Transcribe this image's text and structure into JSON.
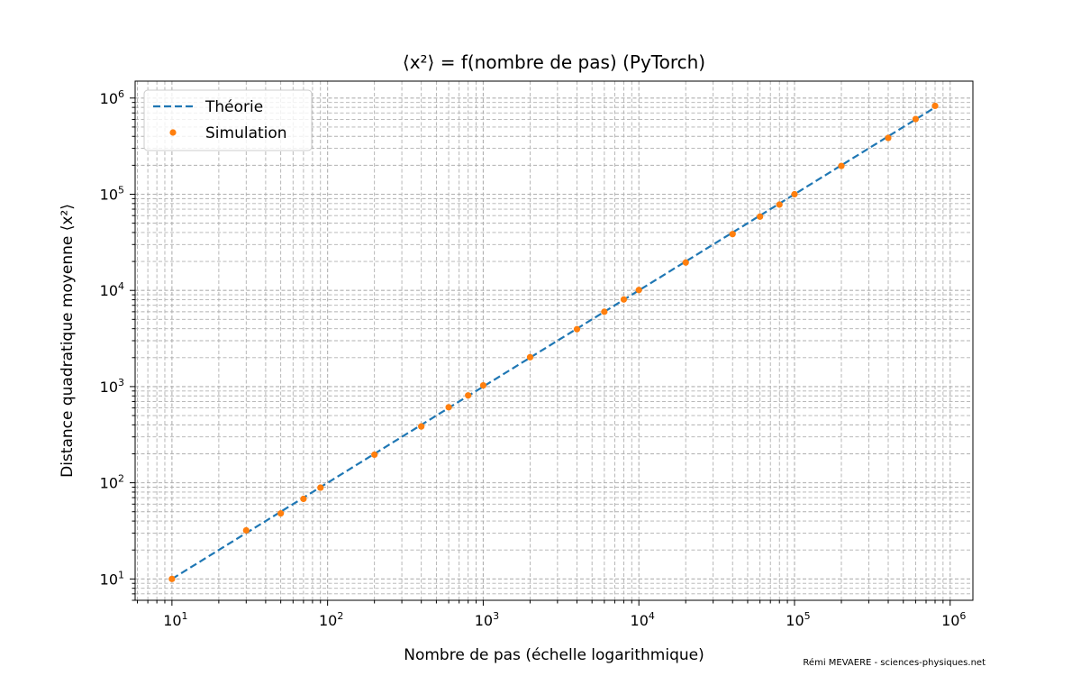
{
  "chart_data": {
    "type": "line",
    "title": "⟨x²⟩ = f(nombre de pas)    (PyTorch)",
    "xlabel": "Nombre de pas (échelle logarithmique)",
    "ylabel": "Distance quadratique moyenne ⟨x²⟩",
    "xscale": "log",
    "yscale": "log",
    "xlim": [
      5.8,
      1400000
    ],
    "ylim": [
      6,
      1500000
    ],
    "grid": true,
    "grid_minor": true,
    "legend_position": "top-left",
    "x_tick_labels": [
      {
        "value": 10,
        "base": "10",
        "exp": "1"
      },
      {
        "value": 100,
        "base": "10",
        "exp": "2"
      },
      {
        "value": 1000,
        "base": "10",
        "exp": "3"
      },
      {
        "value": 10000,
        "base": "10",
        "exp": "4"
      },
      {
        "value": 100000,
        "base": "10",
        "exp": "5"
      },
      {
        "value": 1000000,
        "base": "10",
        "exp": "6"
      }
    ],
    "y_tick_labels": [
      {
        "value": 10,
        "base": "10",
        "exp": "1"
      },
      {
        "value": 100,
        "base": "10",
        "exp": "2"
      },
      {
        "value": 1000,
        "base": "10",
        "exp": "3"
      },
      {
        "value": 10000,
        "base": "10",
        "exp": "4"
      },
      {
        "value": 100000,
        "base": "10",
        "exp": "5"
      },
      {
        "value": 1000000,
        "base": "10",
        "exp": "6"
      }
    ],
    "series": [
      {
        "name": "Théorie",
        "style": "dashed",
        "color": "#1f77b4",
        "x": [
          10,
          800000
        ],
        "y": [
          10,
          800000
        ]
      },
      {
        "name": "Simulation",
        "style": "markers",
        "color": "#ff7f0e",
        "x": [
          10,
          30,
          50,
          70,
          90,
          200,
          400,
          600,
          800,
          1000,
          2000,
          4000,
          6000,
          8000,
          10000,
          20000,
          40000,
          60000,
          80000,
          100000,
          200000,
          400000,
          600000,
          800000
        ],
        "y": [
          10,
          32,
          48,
          68,
          89,
          196,
          385,
          610,
          810,
          1030,
          2020,
          3950,
          6000,
          8050,
          10100,
          19500,
          38500,
          58500,
          78000,
          100000,
          197000,
          385000,
          605000,
          830000
        ]
      }
    ],
    "credit": "Rémi MEVAERE - sciences-physiques.net"
  }
}
